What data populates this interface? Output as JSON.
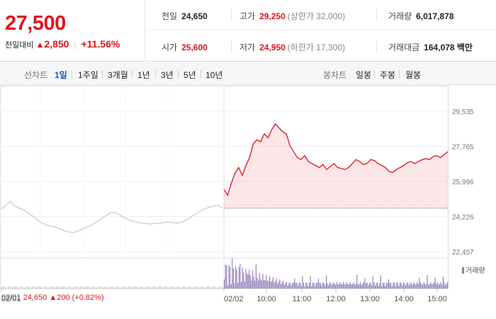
{
  "quote": {
    "price": "27,500",
    "change_label": "전일대비",
    "change_arrow": "▲",
    "change_value": "2,850",
    "change_pct": "+11.56%"
  },
  "stats": {
    "prev_close_label": "전일",
    "prev_close": "24,650",
    "high_label": "고가",
    "high": "29,250",
    "upper_limit": "(상한가 32,000)",
    "volume_label": "거래량",
    "volume": "6,017,878",
    "open_label": "시가",
    "open": "25,600",
    "low_label": "저가",
    "low": "24,950",
    "lower_limit": "(하한가 17,300)",
    "trade_value_label": "거래대금",
    "trade_value": "164,078 백만"
  },
  "tabs": {
    "line_label": "선차트",
    "line_tabs": [
      "1일",
      "1주일",
      "3개월",
      "1년",
      "3년",
      "5년",
      "10년"
    ],
    "active": "1일",
    "candle_label": "봉차트",
    "candle_tabs": [
      "일봉",
      "주봉",
      "월봉"
    ]
  },
  "chart_data": {
    "type": "line",
    "y_ticks": [
      "29,535",
      "27,765",
      "25,996",
      "24,226",
      "22,457"
    ],
    "ylim": [
      22457,
      29535
    ],
    "x_ticks": [
      "02/01",
      "02/02",
      "10:00",
      "11:00",
      "12:00",
      "13:00",
      "14:00",
      "15:00"
    ],
    "base_price": 24650,
    "series": [
      {
        "values_prev_day": [
          24600,
          24800,
          25000,
          24750,
          24650,
          24550,
          24400,
          24250,
          24050,
          23900,
          23800,
          23750,
          23700,
          23600,
          23500,
          23450,
          23420,
          23500,
          23600,
          23700,
          23800,
          23950,
          24100,
          24250,
          24400,
          24450,
          24350,
          24200,
          24100,
          24000,
          23950,
          23900,
          23870,
          23850,
          23880,
          23900,
          23920,
          23950,
          23920,
          23900,
          23950,
          24050,
          24200,
          24350,
          24500,
          24600,
          24700,
          24750,
          24800,
          24650
        ],
        "values_today": [
          25600,
          25300,
          25900,
          26400,
          26700,
          26300,
          26800,
          27200,
          27900,
          28100,
          28000,
          28400,
          28200,
          28600,
          28900,
          28700,
          28500,
          28400,
          27800,
          27500,
          27200,
          27100,
          27300,
          27000,
          26900,
          26800,
          26700,
          26850,
          26600,
          26750,
          26900,
          26700,
          26650,
          26600,
          26700,
          26900,
          27100,
          27000,
          26850,
          26900,
          27100,
          27050,
          26900,
          26800,
          26700,
          26500,
          26450,
          26600,
          26700,
          26800,
          26950,
          27000,
          26900,
          27000,
          27100,
          27150,
          27100,
          27250,
          27300,
          27200,
          27350,
          27500
        ]
      }
    ],
    "volume_label": "거래량"
  },
  "footer": {
    "date": "02/01",
    "prev_price": "24,650",
    "arrow": "▲",
    "diff": "200",
    "pct": "(+0.82%)"
  },
  "colors": {
    "up": "#e0141e",
    "down": "#1a56c9",
    "prev_line": "#c8c8c8",
    "volume": "#8e7ab5"
  }
}
